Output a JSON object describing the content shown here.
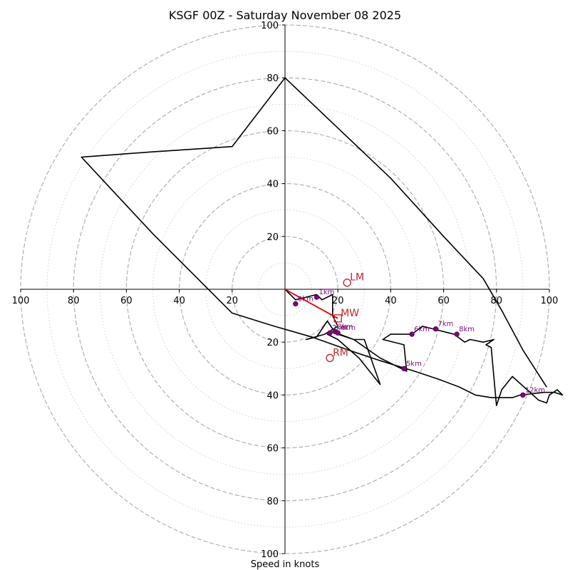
{
  "chart_data": {
    "type": "hodograph",
    "title": "KSGF 00Z - Saturday November 08 2025",
    "xlabel": "Speed in knots",
    "ylabel": "",
    "range": 100,
    "ring_major_step": 20,
    "ring_minor_step": 10,
    "x_ticks": [
      -100,
      -80,
      -60,
      -40,
      -20,
      20,
      40,
      60,
      80,
      100
    ],
    "x_tick_labels": [
      "100",
      "80",
      "60",
      "40",
      "20",
      "20",
      "40",
      "60",
      "80",
      "100"
    ],
    "y_ticks": [
      100,
      80,
      60,
      40,
      20,
      -20,
      -40,
      -60,
      -80,
      -100
    ],
    "y_tick_labels": [
      "100",
      "80",
      "60",
      "40",
      "20",
      "20",
      "40",
      "60",
      "80",
      "100"
    ],
    "wind_profile": {
      "u": [
        0,
        4,
        12,
        14,
        18,
        18,
        20,
        15,
        8,
        12,
        16,
        18,
        20,
        26,
        30,
        36,
        28,
        20,
        16,
        18,
        26,
        36,
        46,
        45,
        37,
        40,
        48,
        52,
        56,
        64,
        68,
        70,
        75,
        79,
        76,
        78,
        80,
        82,
        86,
        96,
        99,
        100,
        103,
        105,
        102,
        98,
        89,
        86,
        78,
        72,
        66,
        58,
        49,
        36,
        24,
        10,
        -4,
        -20,
        -35,
        -50,
        -64,
        -77,
        -50,
        -35,
        -20,
        0,
        20,
        40,
        60,
        75,
        82,
        90,
        99
      ],
      "v": [
        0,
        -4,
        -2,
        -4,
        -2,
        -10,
        -14,
        -17,
        -19,
        -18,
        -12,
        -15,
        -17,
        -19,
        -19,
        -36,
        -26,
        -19,
        -17,
        -16,
        -19,
        -26,
        -31,
        -21,
        -19,
        -17,
        -17,
        -14,
        -15,
        -17,
        -20,
        -19,
        -20,
        -19,
        -21,
        -22,
        -44,
        -38,
        -33,
        -42,
        -43,
        -40,
        -38,
        -40,
        -39,
        -39,
        -40,
        -41,
        -41,
        -40,
        -37,
        -34,
        -31,
        -27,
        -23,
        -18,
        -14,
        -9,
        6,
        21,
        36,
        50,
        52,
        53,
        54,
        80,
        61,
        42,
        20,
        4,
        -8,
        -23,
        -37
      ]
    },
    "height_markers": [
      {
        "label": "0km",
        "u": 4,
        "v": -5.5
      },
      {
        "label": "1km",
        "u": 12,
        "v": -3
      },
      {
        "label": "2km",
        "u": 17,
        "v": -16.5
      },
      {
        "label": "3km",
        "u": 19,
        "v": -16
      },
      {
        "label": "4km",
        "u": 20,
        "v": -16.5
      },
      {
        "label": "5km",
        "u": 45,
        "v": -30
      },
      {
        "label": "6km",
        "u": 48,
        "v": -17
      },
      {
        "label": "7km",
        "u": 57,
        "v": -15
      },
      {
        "label": "8km",
        "u": 65,
        "v": -17
      },
      {
        "label": "12km",
        "u": 90,
        "v": -40
      }
    ],
    "shear_vector": {
      "u": [
        0,
        20
      ],
      "v": [
        0,
        -11
      ]
    },
    "storm_motion": [
      {
        "label": "LM",
        "u": 23.5,
        "v": 2.5
      },
      {
        "label": "MW",
        "u": 20,
        "v": -11
      },
      {
        "label": "RM",
        "u": 17,
        "v": -26
      }
    ]
  }
}
